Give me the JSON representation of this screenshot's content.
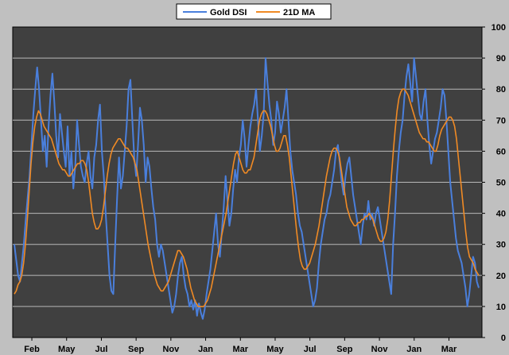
{
  "chart_data": {
    "type": "line",
    "title": "",
    "xlabel": "",
    "ylabel": "",
    "ylim": [
      0,
      100
    ],
    "y_ticks": [
      0,
      10,
      20,
      30,
      40,
      50,
      60,
      70,
      80,
      90,
      100
    ],
    "x_tick_labels": [
      "Feb",
      "May",
      "Jul",
      "Sep",
      "Nov",
      "Jan",
      "Mar",
      "May",
      "Jul",
      "Sep",
      "Nov",
      "Jan",
      "Mar"
    ],
    "grid": true,
    "legend_position": "top-center",
    "background_color": "#404040",
    "series": [
      {
        "name": "Gold DSI",
        "color": "#4a7fdc",
        "values": [
          30,
          25,
          20,
          18,
          24,
          30,
          38,
          45,
          52,
          62,
          72,
          80,
          87,
          80,
          70,
          60,
          65,
          55,
          68,
          78,
          85,
          76,
          65,
          58,
          72,
          66,
          60,
          55,
          68,
          52,
          60,
          48,
          55,
          70,
          62,
          55,
          52,
          50,
          56,
          60,
          52,
          48,
          58,
          62,
          70,
          75,
          60,
          52,
          40,
          30,
          20,
          15,
          14,
          30,
          45,
          58,
          48,
          52,
          60,
          68,
          80,
          83,
          70,
          58,
          52,
          62,
          74,
          70,
          62,
          50,
          58,
          55,
          48,
          42,
          38,
          30,
          26,
          30,
          28,
          24,
          20,
          16,
          12,
          8,
          10,
          14,
          20,
          24,
          26,
          20,
          16,
          14,
          10,
          12,
          9,
          12,
          7,
          11,
          8,
          6,
          9,
          14,
          18,
          22,
          28,
          34,
          40,
          30,
          26,
          34,
          42,
          52,
          44,
          36,
          40,
          48,
          54,
          50,
          58,
          62,
          70,
          64,
          55,
          62,
          68,
          72,
          75,
          80,
          70,
          60,
          65,
          72,
          90,
          82,
          75,
          70,
          62,
          66,
          76,
          72,
          66,
          70,
          74,
          80,
          70,
          60,
          54,
          50,
          46,
          40,
          36,
          34,
          30,
          26,
          22,
          18,
          14,
          10,
          12,
          16,
          24,
          30,
          34,
          38,
          40,
          44,
          46,
          50,
          54,
          60,
          62,
          56,
          50,
          46,
          52,
          56,
          58,
          52,
          46,
          42,
          38,
          34,
          30,
          36,
          40,
          38,
          44,
          38,
          40,
          36,
          40,
          42,
          38,
          34,
          30,
          26,
          22,
          18,
          14,
          30,
          40,
          52,
          60,
          66,
          70,
          78,
          84,
          88,
          82,
          76,
          90,
          84,
          78,
          72,
          70,
          76,
          80,
          70,
          62,
          56,
          60,
          64,
          66,
          70,
          74,
          80,
          78,
          70,
          60,
          50,
          44,
          38,
          32,
          28,
          26,
          24,
          20,
          16,
          10,
          14,
          20,
          26,
          24,
          18,
          16
        ]
      },
      {
        "name": "21D MA",
        "color": "#f08a24",
        "values": [
          14,
          15,
          17,
          18,
          20,
          24,
          30,
          38,
          47,
          56,
          63,
          68,
          71,
          73,
          72,
          70,
          68,
          67,
          66,
          65,
          64,
          62,
          60,
          58,
          56,
          55,
          54,
          54,
          53,
          52,
          52,
          53,
          54,
          55,
          56,
          56,
          57,
          57,
          56,
          54,
          50,
          45,
          40,
          37,
          35,
          35,
          36,
          38,
          42,
          47,
          52,
          56,
          59,
          61,
          62,
          63,
          64,
          64,
          63,
          62,
          61,
          61,
          60,
          59,
          58,
          56,
          54,
          50,
          46,
          42,
          38,
          34,
          30,
          27,
          24,
          21,
          19,
          17,
          16,
          15,
          15,
          16,
          17,
          18,
          20,
          22,
          24,
          26,
          28,
          28,
          27,
          26,
          24,
          22,
          19,
          16,
          14,
          12,
          11,
          10,
          10,
          10,
          10,
          11,
          12,
          14,
          16,
          19,
          22,
          25,
          28,
          31,
          34,
          37,
          40,
          44,
          48,
          52,
          56,
          59,
          60,
          58,
          56,
          54,
          53,
          53,
          54,
          54,
          56,
          58,
          62,
          66,
          70,
          72,
          73,
          73,
          72,
          70,
          68,
          65,
          62,
          60,
          60,
          61,
          63,
          65,
          65,
          62,
          58,
          52,
          46,
          40,
          34,
          29,
          25,
          23,
          22,
          22,
          23,
          24,
          26,
          28,
          30,
          33,
          36,
          40,
          44,
          48,
          52,
          55,
          58,
          60,
          61,
          61,
          60,
          58,
          54,
          50,
          46,
          42,
          40,
          38,
          37,
          36,
          36,
          37,
          37,
          38,
          38,
          39,
          39,
          40,
          39,
          38,
          36,
          34,
          32,
          31,
          31,
          32,
          34,
          38,
          44,
          52,
          60,
          67,
          73,
          77,
          79,
          80,
          80,
          79,
          78,
          76,
          74,
          72,
          70,
          68,
          66,
          65,
          64,
          64,
          63,
          63,
          62,
          61,
          60,
          60,
          62,
          65,
          67,
          68,
          69,
          70,
          71,
          71,
          70,
          68,
          64,
          58,
          52,
          46,
          40,
          34,
          29,
          26,
          25,
          24,
          22,
          21,
          20
        ]
      }
    ]
  }
}
